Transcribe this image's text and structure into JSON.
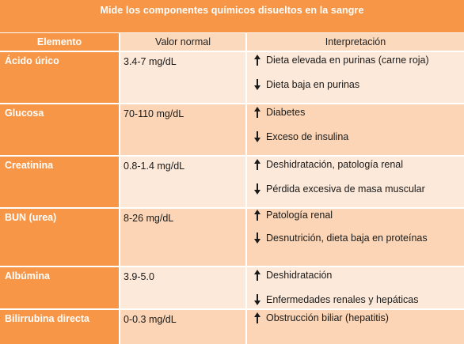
{
  "title": "Mide los componentes químicos disueltos en la sangre",
  "headers": {
    "element": "Elemento",
    "normal_value": "Valor normal",
    "interpretation": "Interpretación"
  },
  "rows": [
    {
      "element": "Ácido úrico",
      "normal_value": "3.4-7 mg/dL",
      "up": "Dieta elevada en purinas (carne roja)",
      "down": "Dieta baja en purinas"
    },
    {
      "element": "Glucosa",
      "normal_value": "70-110 mg/dL",
      "up": "Diabetes",
      "down": "Exceso de insulina"
    },
    {
      "element": "Creatinina",
      "normal_value": "0.8-1.4 mg/dL",
      "up": "Deshidratación, patología renal",
      "down": "Pérdida excesiva de masa muscular"
    },
    {
      "element": "BUN (urea)",
      "normal_value": "8-26 mg/dL",
      "up": "Patología renal",
      "down": "Desnutrición, dieta baja en proteínas"
    },
    {
      "element": "Albúmina",
      "normal_value": "3.9-5.0",
      "up": "Deshidratación",
      "down": "Enfermedades renales y hepáticas"
    },
    {
      "element": "Bilirrubina directa",
      "normal_value": "0-0.3 mg/dL",
      "up": "Obstrucción biliar (hepatitis)"
    }
  ],
  "icons": {
    "up": "arrow-up-icon",
    "down": "arrow-down-icon"
  },
  "colors": {
    "accent_orange": "#f79646",
    "row_light": "#fde9d9",
    "row_dark": "#fbd5b5"
  }
}
